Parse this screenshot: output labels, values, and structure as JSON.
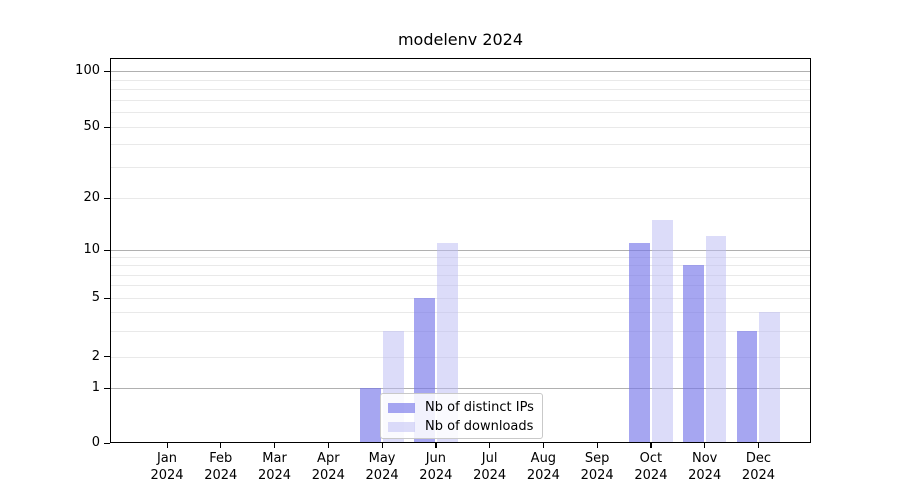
{
  "title": "modelenv 2024",
  "chart_data": {
    "type": "bar",
    "title": "modelenv 2024",
    "categories": [
      "Jan 2024",
      "Feb 2024",
      "Mar 2024",
      "Apr 2024",
      "May 2024",
      "Jun 2024",
      "Jul 2024",
      "Aug 2024",
      "Sep 2024",
      "Oct 2024",
      "Nov 2024",
      "Dec 2024"
    ],
    "series": [
      {
        "name": "Nb of distinct IPs",
        "color": "rgba(118,118,234,0.65)",
        "values": [
          0,
          0,
          0,
          0,
          1,
          5,
          0,
          0,
          0,
          11,
          8,
          3
        ]
      },
      {
        "name": "Nb of downloads",
        "color": "rgba(186,186,244,0.5)",
        "values": [
          0,
          0,
          0,
          0,
          3,
          11,
          0,
          0,
          0,
          15,
          12,
          4
        ]
      }
    ],
    "yticks": [
      0,
      1,
      2,
      5,
      10,
      20,
      50,
      100
    ],
    "ylim": [
      0,
      100
    ],
    "yscale": "log-above-1",
    "xlabel": "",
    "ylabel": "",
    "grid": true,
    "legend_position": "lower center"
  },
  "colors": {
    "major_grid": "#b0b0b0",
    "minor_grid": "#e9e9e9",
    "axis": "#000000",
    "legend_border": "#c9c9c9"
  }
}
